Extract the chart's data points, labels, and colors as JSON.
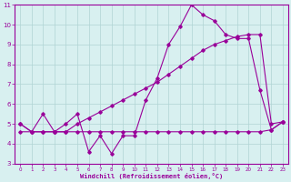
{
  "line1_x": [
    0,
    1,
    2,
    3,
    4,
    5,
    6,
    7,
    8,
    9,
    10,
    11,
    12,
    13,
    14,
    15,
    16,
    17,
    18,
    19,
    20,
    21,
    22,
    23
  ],
  "line1_y": [
    5.0,
    4.6,
    5.5,
    4.6,
    5.0,
    5.5,
    3.6,
    4.4,
    3.5,
    4.4,
    4.4,
    6.2,
    7.3,
    9.0,
    9.9,
    11.0,
    10.5,
    10.2,
    9.5,
    9.3,
    9.3,
    6.7,
    4.7,
    5.1
  ],
  "line2_x": [
    0,
    1,
    2,
    3,
    4,
    5,
    6,
    7,
    8,
    9,
    10,
    11,
    12,
    13,
    14,
    15,
    16,
    17,
    18,
    19,
    20,
    21,
    22,
    23
  ],
  "line2_y": [
    5.0,
    4.6,
    4.6,
    4.6,
    4.6,
    5.0,
    5.3,
    5.6,
    5.9,
    6.2,
    6.5,
    6.8,
    7.1,
    7.5,
    7.9,
    8.3,
    8.7,
    9.0,
    9.2,
    9.4,
    9.5,
    9.5,
    5.0,
    5.1
  ],
  "line3_x": [
    0,
    1,
    2,
    3,
    4,
    5,
    6,
    7,
    8,
    9,
    10,
    11,
    12,
    13,
    14,
    15,
    16,
    17,
    18,
    19,
    20,
    21,
    22,
    23
  ],
  "line3_y": [
    4.6,
    4.6,
    4.6,
    4.6,
    4.6,
    4.6,
    4.6,
    4.6,
    4.6,
    4.6,
    4.6,
    4.6,
    4.6,
    4.6,
    4.6,
    4.6,
    4.6,
    4.6,
    4.6,
    4.6,
    4.6,
    4.6,
    4.7,
    5.1
  ],
  "color": "#990099",
  "bg_color": "#d8f0f0",
  "grid_color": "#b0d4d4",
  "xlabel": "Windchill (Refroidissement éolien,°C)",
  "xlim": [
    -0.5,
    23.5
  ],
  "ylim": [
    3,
    11
  ],
  "xticks": [
    0,
    1,
    2,
    3,
    4,
    5,
    6,
    7,
    8,
    9,
    10,
    11,
    12,
    13,
    14,
    15,
    16,
    17,
    18,
    19,
    20,
    21,
    22,
    23
  ],
  "yticks": [
    3,
    4,
    5,
    6,
    7,
    8,
    9,
    10,
    11
  ],
  "marker": "D",
  "marker_size": 1.8,
  "linewidth": 0.8
}
